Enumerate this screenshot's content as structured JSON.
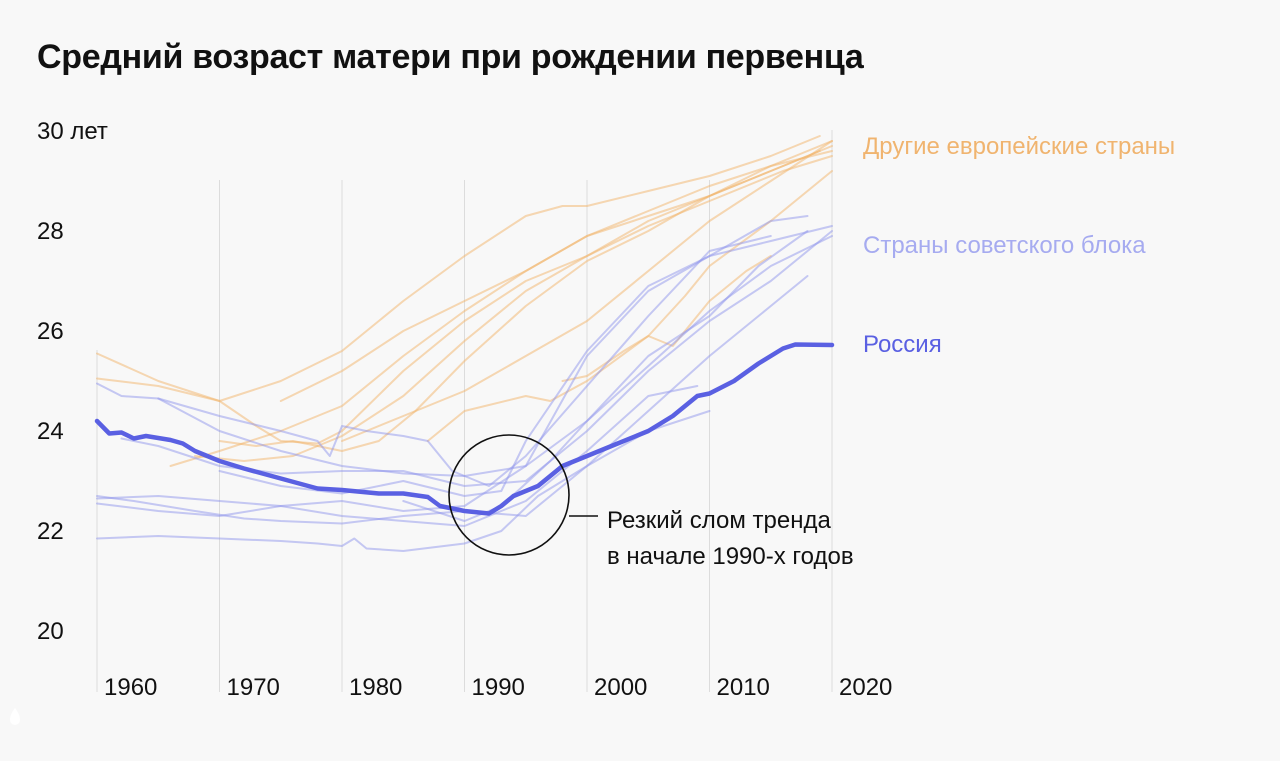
{
  "chart_data": {
    "type": "line",
    "title": "Средний возраст матери при рождении первенца",
    "ylim": [
      20,
      30
    ],
    "xlim": [
      1960,
      2020
    ],
    "y_ticks": [
      {
        "v": 30,
        "label": "30 лет"
      },
      {
        "v": 28,
        "label": "28"
      },
      {
        "v": 26,
        "label": "26"
      },
      {
        "v": 24,
        "label": "24"
      },
      {
        "v": 22,
        "label": "22"
      },
      {
        "v": 20,
        "label": "20"
      }
    ],
    "x_ticks": [
      {
        "v": 1960,
        "label": "1960"
      },
      {
        "v": 1970,
        "label": "1970"
      },
      {
        "v": 1980,
        "label": "1980"
      },
      {
        "v": 1990,
        "label": "1990"
      },
      {
        "v": 2000,
        "label": "2000"
      },
      {
        "v": 2010,
        "label": "2010"
      },
      {
        "v": 2020,
        "label": "2020"
      }
    ],
    "grid": "vertical",
    "groups": [
      {
        "name": "Другие европейские страны",
        "color": "#f2b36a",
        "series": [
          [
            [
              1960,
              25.55
            ],
            [
              1965,
              25.0
            ],
            [
              1970,
              24.6
            ],
            [
              1975,
              25.0
            ],
            [
              1980,
              25.6
            ],
            [
              1985,
              26.6
            ],
            [
              1990,
              27.5
            ],
            [
              1995,
              28.3
            ],
            [
              1998,
              28.5
            ],
            [
              2000,
              28.5
            ],
            [
              2005,
              28.8
            ],
            [
              2010,
              29.1
            ],
            [
              2015,
              29.5
            ],
            [
              2019,
              29.9
            ]
          ],
          [
            [
              1960,
              25.05
            ],
            [
              1965,
              24.9
            ],
            [
              1970,
              24.6
            ],
            [
              1973,
              24.1
            ],
            [
              1975,
              23.8
            ],
            [
              1978,
              23.75
            ],
            [
              1980,
              24.0
            ],
            [
              1985,
              25.2
            ],
            [
              1990,
              26.2
            ],
            [
              1995,
              27.0
            ],
            [
              2000,
              27.5
            ],
            [
              2005,
              28.2
            ],
            [
              2010,
              28.7
            ],
            [
              2015,
              29.2
            ],
            [
              2020,
              29.7
            ]
          ],
          [
            [
              1966,
              23.3
            ],
            [
              1970,
              23.6
            ],
            [
              1975,
              24.0
            ],
            [
              1980,
              24.5
            ],
            [
              1985,
              25.5
            ],
            [
              1990,
              26.4
            ],
            [
              1995,
              27.2
            ],
            [
              2000,
              27.9
            ],
            [
              2005,
              28.4
            ],
            [
              2010,
              28.9
            ],
            [
              2015,
              29.3
            ],
            [
              2020,
              29.6
            ]
          ],
          [
            [
              1970,
              23.8
            ],
            [
              1973,
              23.7
            ],
            [
              1976,
              23.8
            ],
            [
              1980,
              23.6
            ],
            [
              1983,
              23.8
            ],
            [
              1986,
              24.4
            ],
            [
              1990,
              25.4
            ],
            [
              1995,
              26.5
            ],
            [
              2000,
              27.4
            ],
            [
              2005,
              28.0
            ],
            [
              2010,
              28.7
            ],
            [
              2015,
              29.3
            ],
            [
              2020,
              29.8
            ]
          ],
          [
            [
              1968,
              23.5
            ],
            [
              1972,
              23.4
            ],
            [
              1976,
              23.5
            ],
            [
              1980,
              23.9
            ],
            [
              1985,
              24.7
            ],
            [
              1990,
              25.8
            ],
            [
              1995,
              26.8
            ],
            [
              2000,
              27.5
            ],
            [
              2005,
              28.1
            ],
            [
              2010,
              28.6
            ],
            [
              2016,
              29.2
            ],
            [
              2020,
              29.5
            ]
          ],
          [
            [
              1980,
              23.8
            ],
            [
              1985,
              24.3
            ],
            [
              1990,
              24.8
            ],
            [
              1995,
              25.5
            ],
            [
              2000,
              26.2
            ],
            [
              2005,
              27.2
            ],
            [
              2010,
              28.2
            ],
            [
              2015,
              29.0
            ],
            [
              2020,
              29.8
            ]
          ],
          [
            [
              1987,
              23.8
            ],
            [
              1990,
              24.4
            ],
            [
              1995,
              24.7
            ],
            [
              1997,
              24.6
            ],
            [
              2000,
              25.0
            ],
            [
              2005,
              25.9
            ],
            [
              2008,
              26.7
            ],
            [
              2010,
              27.3
            ],
            [
              2015,
              28.2
            ],
            [
              2020,
              29.2
            ]
          ],
          [
            [
              1998,
              25.0
            ],
            [
              2000,
              25.1
            ],
            [
              2003,
              25.6
            ],
            [
              2005,
              25.9
            ],
            [
              2007,
              25.7
            ],
            [
              2010,
              26.6
            ],
            [
              2013,
              27.2
            ],
            [
              2015,
              27.5
            ]
          ],
          [
            [
              1975,
              24.6
            ],
            [
              1980,
              25.2
            ],
            [
              1985,
              26.0
            ],
            [
              1990,
              26.6
            ],
            [
              1995,
              27.2
            ],
            [
              2000,
              27.9
            ],
            [
              2005,
              28.3
            ],
            [
              2010,
              28.7
            ],
            [
              2015,
              29.2
            ],
            [
              2019,
              29.6
            ]
          ]
        ]
      },
      {
        "name": "Страны советского блока",
        "color": "#8f95ec",
        "series": [
          [
            [
              1960,
              24.95
            ],
            [
              1962,
              24.7
            ],
            [
              1965,
              24.65
            ],
            [
              1970,
              24.0
            ],
            [
              1975,
              23.6
            ],
            [
              1980,
              23.3
            ],
            [
              1985,
              23.15
            ],
            [
              1990,
              23.1
            ],
            [
              1995,
              23.3
            ],
            [
              2000,
              25.5
            ],
            [
              2005,
              26.8
            ],
            [
              2010,
              27.5
            ],
            [
              2015,
              27.8
            ],
            [
              2020,
              28.1
            ]
          ],
          [
            [
              1965,
              24.65
            ],
            [
              1970,
              24.3
            ],
            [
              1975,
              24.0
            ],
            [
              1978,
              23.8
            ],
            [
              1979,
              23.5
            ],
            [
              1980,
              24.1
            ],
            [
              1982,
              24.0
            ],
            [
              1985,
              23.9
            ],
            [
              1987,
              23.8
            ],
            [
              1989,
              23.2
            ],
            [
              1992,
              22.9
            ],
            [
              1995,
              23.5
            ],
            [
              2000,
              24.9
            ],
            [
              2005,
              26.3
            ],
            [
              2010,
              27.6
            ],
            [
              2015,
              27.9
            ]
          ],
          [
            [
              1962,
              23.85
            ],
            [
              1965,
              23.7
            ],
            [
              1970,
              23.3
            ],
            [
              1975,
              23.15
            ],
            [
              1980,
              23.2
            ],
            [
              1985,
              23.2
            ],
            [
              1990,
              22.9
            ],
            [
              1995,
              23.0
            ],
            [
              2000,
              24.0
            ],
            [
              2005,
              25.2
            ],
            [
              2010,
              26.2
            ],
            [
              2015,
              27.0
            ],
            [
              2020,
              28.0
            ]
          ],
          [
            [
              1960,
              22.65
            ],
            [
              1965,
              22.7
            ],
            [
              1970,
              22.6
            ],
            [
              1975,
              22.5
            ],
            [
              1980,
              22.6
            ],
            [
              1985,
              22.4
            ],
            [
              1990,
              22.5
            ],
            [
              1995,
              23.3
            ],
            [
              2000,
              24.2
            ],
            [
              2005,
              25.3
            ],
            [
              2010,
              26.4
            ],
            [
              2015,
              27.3
            ],
            [
              2020,
              27.9
            ]
          ],
          [
            [
              1960,
              22.55
            ],
            [
              1965,
              22.4
            ],
            [
              1970,
              22.3
            ],
            [
              1975,
              22.5
            ],
            [
              1980,
              22.3
            ],
            [
              1985,
              22.2
            ],
            [
              1990,
              22.1
            ],
            [
              1995,
              22.6
            ],
            [
              2000,
              23.6
            ],
            [
              2005,
              24.7
            ],
            [
              2009,
              24.9
            ]
          ],
          [
            [
              1960,
              22.7
            ],
            [
              1963,
              22.6
            ],
            [
              1968,
              22.4
            ],
            [
              1972,
              22.25
            ],
            [
              1975,
              22.2
            ],
            [
              1980,
              22.15
            ],
            [
              1985,
              22.3
            ],
            [
              1990,
              22.4
            ],
            [
              1995,
              22.3
            ],
            [
              2000,
              23.3
            ],
            [
              2005,
              24.4
            ],
            [
              2010,
              25.5
            ],
            [
              2015,
              26.5
            ],
            [
              2018,
              27.1
            ]
          ],
          [
            [
              1960,
              21.85
            ],
            [
              1965,
              21.9
            ],
            [
              1970,
              21.85
            ],
            [
              1975,
              21.8
            ],
            [
              1978,
              21.75
            ],
            [
              1980,
              21.7
            ],
            [
              1981,
              21.85
            ],
            [
              1982,
              21.65
            ],
            [
              1985,
              21.6
            ],
            [
              1990,
              21.75
            ],
            [
              1993,
              22.0
            ],
            [
              1996,
              22.7
            ],
            [
              2000,
              23.3
            ],
            [
              2005,
              24.0
            ],
            [
              2010,
              24.4
            ]
          ],
          [
            [
              1970,
              23.2
            ],
            [
              1975,
              22.9
            ],
            [
              1980,
              22.75
            ],
            [
              1985,
              23.0
            ],
            [
              1990,
              22.7
            ],
            [
              1993,
              22.8
            ],
            [
              1995,
              23.8
            ],
            [
              2000,
              25.6
            ],
            [
              2005,
              26.9
            ],
            [
              2010,
              27.5
            ],
            [
              2015,
              28.2
            ],
            [
              2018,
              28.3
            ]
          ],
          [
            [
              1985,
              22.6
            ],
            [
              1990,
              22.2
            ],
            [
              1993,
              22.5
            ],
            [
              1997,
              23.4
            ],
            [
              2000,
              24.2
            ],
            [
              2005,
              25.5
            ],
            [
              2010,
              26.3
            ],
            [
              2014,
              27.3
            ],
            [
              2018,
              28.0
            ]
          ]
        ]
      },
      {
        "name": "Россия",
        "color": "#5a60e2",
        "series": [
          [
            [
              1960,
              24.2
            ],
            [
              1961,
              23.95
            ],
            [
              1962,
              23.97
            ],
            [
              1963,
              23.85
            ],
            [
              1964,
              23.9
            ],
            [
              1966,
              23.82
            ],
            [
              1967,
              23.75
            ],
            [
              1968,
              23.6
            ],
            [
              1970,
              23.4
            ],
            [
              1972,
              23.25
            ],
            [
              1975,
              23.05
            ],
            [
              1978,
              22.85
            ],
            [
              1980,
              22.82
            ],
            [
              1983,
              22.75
            ],
            [
              1985,
              22.75
            ],
            [
              1987,
              22.68
            ],
            [
              1988,
              22.5
            ],
            [
              1990,
              22.4
            ],
            [
              1992,
              22.35
            ],
            [
              1993,
              22.5
            ],
            [
              1994,
              22.7
            ],
            [
              1996,
              22.9
            ],
            [
              1998,
              23.3
            ],
            [
              2000,
              23.5
            ],
            [
              2002,
              23.7
            ],
            [
              2005,
              24.0
            ],
            [
              2007,
              24.3
            ],
            [
              2009,
              24.7
            ],
            [
              2010,
              24.75
            ],
            [
              2012,
              25.0
            ],
            [
              2014,
              25.35
            ],
            [
              2016,
              25.65
            ],
            [
              2017,
              25.73
            ],
            [
              2020,
              25.72
            ]
          ]
        ]
      }
    ],
    "annotation": {
      "lines": [
        "Резкий слом тренда",
        "в начале 1990-х годов"
      ],
      "year": 1991,
      "value": 22.7
    }
  }
}
